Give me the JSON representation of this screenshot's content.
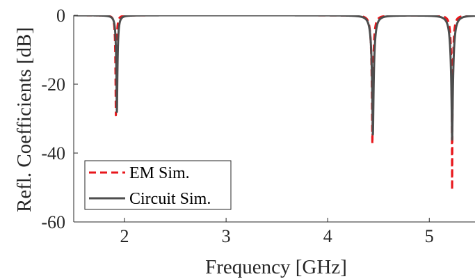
{
  "chart_data": {
    "type": "line",
    "xlabel": "Frequency [GHz]",
    "ylabel": "Refl. Coefficients [dB]",
    "xlim": [
      1.5,
      5.45
    ],
    "ylim": [
      -60,
      0
    ],
    "xticks": [
      2,
      3,
      4,
      5
    ],
    "yticks": [
      0,
      -20,
      -40,
      -60
    ],
    "grid": false,
    "legend_position": "bottom-left",
    "series": [
      {
        "name": "EM Sim.",
        "color": "#e8161b",
        "style": "dashed",
        "resonances": [
          {
            "f0": 1.915,
            "min_db": -29,
            "width": 0.011
          },
          {
            "f0": 4.44,
            "min_db": -37,
            "width": 0.02
          },
          {
            "f0": 5.225,
            "min_db": -49,
            "width": 0.018
          }
        ]
      },
      {
        "name": "Circuit Sim.",
        "color": "#4d4d4d",
        "style": "solid",
        "resonances": [
          {
            "f0": 1.925,
            "min_db": -28,
            "width": 0.015
          },
          {
            "f0": 4.445,
            "min_db": -34,
            "width": 0.026
          },
          {
            "f0": 5.225,
            "min_db": -35.5,
            "width": 0.028
          }
        ]
      }
    ]
  }
}
